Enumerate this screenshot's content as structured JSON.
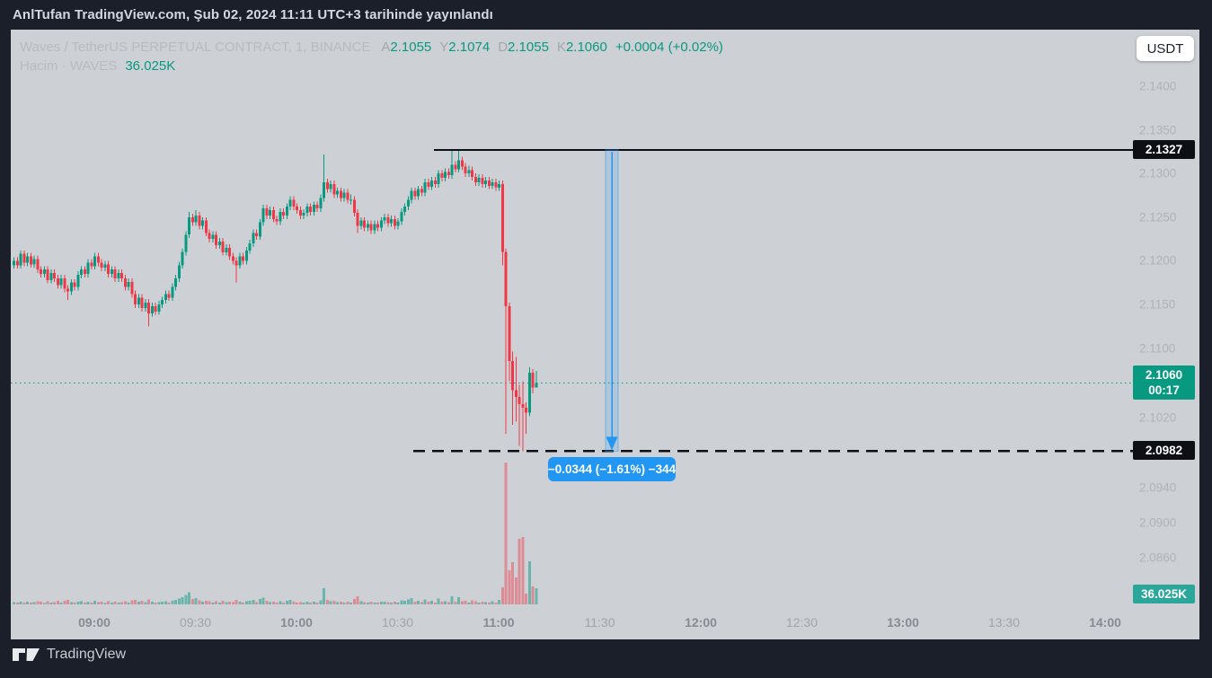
{
  "top_bar": {
    "published_text": "AnlTufan TradingView.com, Şub 02, 2024 11:11 UTC+3 tarihinde yayınlandı"
  },
  "currency_button": {
    "label": "USDT"
  },
  "watermark": {
    "brand": "TradingView"
  },
  "header": {
    "symbol_line": "Waves / TetherUS PERPETUAL CONTRACT, 1, BINANCE",
    "ohlc": [
      {
        "key": "A",
        "value": "2.1055"
      },
      {
        "key": "Y",
        "value": "2.1074"
      },
      {
        "key": "D",
        "value": "2.1055"
      },
      {
        "key": "K",
        "value": "2.1060"
      }
    ],
    "change": "+0.0004 (+0.02%)",
    "volume_label": "Hacim · WAVES",
    "volume_value": "36.025K"
  },
  "price_axis": {
    "ticks": [
      {
        "label": "2.1400",
        "price": 2.14
      },
      {
        "label": "2.1350",
        "price": 2.135
      },
      {
        "label": "2.1300",
        "price": 2.13
      },
      {
        "label": "2.1250",
        "price": 2.125
      },
      {
        "label": "2.1200",
        "price": 2.12
      },
      {
        "label": "2.1150",
        "price": 2.115
      },
      {
        "label": "2.1100",
        "price": 2.11
      },
      {
        "label": "2.1020",
        "price": 2.102
      },
      {
        "label": "2.0940",
        "price": 2.094
      },
      {
        "label": "2.0900",
        "price": 2.09
      },
      {
        "label": "2.0860",
        "price": 2.086
      }
    ],
    "badges": [
      {
        "name": "resistance-price-badge",
        "price": 2.1327,
        "lines": [
          "2.1327"
        ],
        "bg": "#0c0f14"
      },
      {
        "name": "current-price-badge",
        "price": 2.106,
        "lines": [
          "2.1060",
          "00:17"
        ],
        "bg": "#089981"
      },
      {
        "name": "support-price-badge",
        "price": 2.0982,
        "lines": [
          "2.0982"
        ],
        "bg": "#0c0f14"
      },
      {
        "name": "volume-badge",
        "anchor": "volume",
        "lines": [
          "36.025K"
        ],
        "bg": "#2aa79a"
      }
    ]
  },
  "time_axis": {
    "labels": [
      {
        "text": "09:00",
        "major": true
      },
      {
        "text": "09:30",
        "major": false
      },
      {
        "text": "10:00",
        "major": true
      },
      {
        "text": "10:30",
        "major": false
      },
      {
        "text": "11:00",
        "major": true
      },
      {
        "text": "11:30",
        "major": false
      },
      {
        "text": "12:00",
        "major": true
      },
      {
        "text": "12:30",
        "major": false
      },
      {
        "text": "13:00",
        "major": true
      },
      {
        "text": "13:30",
        "major": false
      },
      {
        "text": "14:00",
        "major": true
      }
    ]
  },
  "chart_data": {
    "type": "candlestick",
    "title": "Waves / TetherUS PERPETUAL CONTRACT, 1, BINANCE",
    "exchange": "BINANCE",
    "interval_minutes": 1,
    "first_candle_time": "08:36",
    "price_range_visible": [
      2.083,
      2.1425
    ],
    "volume_unit": "K",
    "colors": {
      "up": "#089981",
      "down": "#f23645",
      "measure": "#2196f3",
      "line": "#0c0f14"
    },
    "annotations": {
      "horizontal_line": {
        "price": 2.1327,
        "style": "solid",
        "label": "2.1327"
      },
      "horizontal_dashed_line": {
        "price": 2.0982,
        "style": "dashed",
        "label": "2.0982"
      },
      "current_price_line": {
        "price": 2.106,
        "style": "dotted",
        "label": "2.1060",
        "countdown": "00:17"
      },
      "measurement": {
        "from_price": 2.1327,
        "to_price": 2.0982,
        "label": "−0.0344 (−1.61%) −344"
      },
      "last_volume": "36.025K"
    },
    "candles": [
      [
        2.1195,
        2.1204,
        2.1191,
        2.12,
        4.8
      ],
      [
        2.12,
        2.1204,
        2.1191,
        2.1195,
        3.6
      ],
      [
        2.1195,
        2.1212,
        2.1191,
        2.1208,
        6.4
      ],
      [
        2.1208,
        2.1212,
        2.1194,
        2.1198,
        4.4
      ],
      [
        2.1198,
        2.1209,
        2.1194,
        2.1205,
        5.6
      ],
      [
        2.1205,
        2.1209,
        2.1192,
        2.1196,
        4.0
      ],
      [
        2.1196,
        2.1206,
        2.1192,
        2.1202,
        5.2
      ],
      [
        2.1202,
        2.1206,
        2.1186,
        2.119,
        7.2
      ],
      [
        2.119,
        2.1194,
        2.1181,
        2.1185,
        6.0
      ],
      [
        2.1185,
        2.1194,
        2.1181,
        2.119,
        3.2
      ],
      [
        2.119,
        2.1194,
        2.1174,
        2.1178,
        6.8
      ],
      [
        2.1178,
        2.119,
        2.1174,
        2.1186,
        4.0
      ],
      [
        2.1186,
        2.119,
        2.1176,
        2.118,
        4.8
      ],
      [
        2.118,
        2.1184,
        2.1168,
        2.1172,
        7.6
      ],
      [
        2.1172,
        2.1184,
        2.1168,
        2.118,
        4.4
      ],
      [
        2.118,
        2.1184,
        2.1164,
        2.1168,
        8.4
      ],
      [
        2.1168,
        2.1172,
        2.1155,
        2.1165,
        9.6
      ],
      [
        2.1165,
        2.1179,
        2.1161,
        2.1175,
        5.2
      ],
      [
        2.1175,
        2.1179,
        2.1166,
        2.117,
        3.6
      ],
      [
        2.117,
        2.1188,
        2.1166,
        2.1184,
        6.4
      ],
      [
        2.1184,
        2.1194,
        2.118,
        2.119,
        7.2
      ],
      [
        2.119,
        2.1194,
        2.1181,
        2.1185,
        4.0
      ],
      [
        2.1185,
        2.1202,
        2.1181,
        2.1198,
        6.0
      ],
      [
        2.1198,
        2.1202,
        2.119,
        2.1194,
        3.6
      ],
      [
        2.1194,
        2.1209,
        2.119,
        2.1205,
        8.0
      ],
      [
        2.1205,
        2.1209,
        2.1194,
        2.1198,
        4.8
      ],
      [
        2.1198,
        2.1202,
        2.1188,
        2.1192,
        5.6
      ],
      [
        2.1192,
        2.12,
        2.1188,
        2.1196,
        3.2
      ],
      [
        2.1196,
        2.12,
        2.1181,
        2.1185,
        6.8
      ],
      [
        2.1185,
        2.1194,
        2.1181,
        2.119,
        4.0
      ],
      [
        2.119,
        2.1194,
        2.1176,
        2.118,
        6.4
      ],
      [
        2.118,
        2.119,
        2.1176,
        2.1186,
        3.6
      ],
      [
        2.1186,
        2.119,
        2.1176,
        2.118,
        5.2
      ],
      [
        2.118,
        2.1184,
        2.1166,
        2.117,
        7.2
      ],
      [
        2.117,
        2.118,
        2.1166,
        2.1176,
        4.4
      ],
      [
        2.1176,
        2.118,
        2.1158,
        2.1162,
        8.8
      ],
      [
        2.1162,
        2.1166,
        2.1146,
        2.115,
        10.4
      ],
      [
        2.115,
        2.1162,
        2.1146,
        2.1158,
        5.6
      ],
      [
        2.1158,
        2.1162,
        2.1142,
        2.1146,
        7.6
      ],
      [
        2.1146,
        2.1156,
        2.1142,
        2.1152,
        4.8
      ],
      [
        2.1152,
        2.1156,
        2.1125,
        2.114,
        11.2
      ],
      [
        2.114,
        2.1152,
        2.1136,
        2.1148,
        6.0
      ],
      [
        2.1148,
        2.1152,
        2.1138,
        2.1142,
        4.0
      ],
      [
        2.1142,
        2.1154,
        2.1138,
        2.115,
        5.2
      ],
      [
        2.115,
        2.1159,
        2.1146,
        2.1155,
        6.4
      ],
      [
        2.1155,
        2.1166,
        2.1151,
        2.1162,
        7.2
      ],
      [
        2.1162,
        2.1166,
        2.1154,
        2.1158,
        4.0
      ],
      [
        2.1158,
        2.1174,
        2.1154,
        2.117,
        8.4
      ],
      [
        2.117,
        2.1184,
        2.1166,
        2.118,
        9.6
      ],
      [
        2.118,
        2.1199,
        2.1176,
        2.1195,
        12.8
      ],
      [
        2.1195,
        2.1214,
        2.1191,
        2.121,
        16.4
      ],
      [
        2.121,
        2.1234,
        2.1206,
        2.123,
        21.2
      ],
      [
        2.123,
        2.1256,
        2.1226,
        2.125,
        27.2
      ],
      [
        2.125,
        2.1254,
        2.124,
        2.1244,
        11.6
      ],
      [
        2.1244,
        2.1258,
        2.124,
        2.1252,
        13.6
      ],
      [
        2.1252,
        2.1256,
        2.1236,
        2.124,
        8.8
      ],
      [
        2.124,
        2.125,
        2.1236,
        2.1246,
        6.0
      ],
      [
        2.1246,
        2.125,
        2.1228,
        2.1232,
        8.0
      ],
      [
        2.1232,
        2.1236,
        2.1221,
        2.1225,
        6.8
      ],
      [
        2.1225,
        2.1234,
        2.1221,
        2.123,
        4.4
      ],
      [
        2.123,
        2.1234,
        2.1214,
        2.1218,
        7.2
      ],
      [
        2.1218,
        2.1226,
        2.1214,
        2.1222,
        4.0
      ],
      [
        2.1222,
        2.1226,
        2.1206,
        2.121,
        7.6
      ],
      [
        2.121,
        2.1219,
        2.1206,
        2.1215,
        4.8
      ],
      [
        2.1215,
        2.1219,
        2.1201,
        2.1205,
        6.4
      ],
      [
        2.1205,
        2.1209,
        2.1196,
        2.12,
        5.2
      ],
      [
        2.12,
        2.1204,
        2.1175,
        2.1195,
        10.0
      ],
      [
        2.1195,
        2.1209,
        2.1191,
        2.1205,
        5.6
      ],
      [
        2.1205,
        2.1209,
        2.1196,
        2.12,
        4.0
      ],
      [
        2.12,
        2.1216,
        2.1196,
        2.1212,
        6.8
      ],
      [
        2.1212,
        2.1224,
        2.1208,
        2.122,
        8.0
      ],
      [
        2.122,
        2.1236,
        2.1216,
        2.1232,
        10.4
      ],
      [
        2.1232,
        2.1236,
        2.1224,
        2.1228,
        5.2
      ],
      [
        2.1228,
        2.1248,
        2.1224,
        2.1244,
        11.6
      ],
      [
        2.1244,
        2.1264,
        2.124,
        2.126,
        15.2
      ],
      [
        2.126,
        2.1264,
        2.1248,
        2.1252,
        7.6
      ],
      [
        2.1252,
        2.1262,
        2.1248,
        2.1258,
        4.8
      ],
      [
        2.1258,
        2.1262,
        2.1244,
        2.1248,
        6.4
      ],
      [
        2.1248,
        2.1252,
        2.1241,
        2.1245,
        4.0
      ],
      [
        2.1245,
        2.126,
        2.1241,
        2.1256,
        7.2
      ],
      [
        2.1256,
        2.126,
        2.1248,
        2.1252,
        4.4
      ],
      [
        2.1252,
        2.1266,
        2.1248,
        2.1262,
        7.6
      ],
      [
        2.1262,
        2.1274,
        2.1258,
        2.127,
        9.6
      ],
      [
        2.127,
        2.1274,
        2.1258,
        2.1262,
        5.6
      ],
      [
        2.1262,
        2.1266,
        2.1254,
        2.1258,
        4.0
      ],
      [
        2.1258,
        2.1262,
        2.1248,
        2.1252,
        5.2
      ],
      [
        2.1252,
        2.1259,
        2.1248,
        2.1255,
        3.6
      ],
      [
        2.1255,
        2.1266,
        2.1251,
        2.1262,
        6.0
      ],
      [
        2.1262,
        2.1266,
        2.1252,
        2.1256,
        4.0
      ],
      [
        2.1256,
        2.1268,
        2.1252,
        2.1264,
        6.4
      ],
      [
        2.1264,
        2.1268,
        2.1256,
        2.126,
        4.4
      ],
      [
        2.126,
        2.1276,
        2.1256,
        2.1272,
        8.8
      ],
      [
        2.1272,
        2.1322,
        2.1268,
        2.129,
        35.6
      ],
      [
        2.129,
        2.1294,
        2.1278,
        2.1282,
        10.4
      ],
      [
        2.1282,
        2.1292,
        2.1278,
        2.1288,
        6.8
      ],
      [
        2.1288,
        2.1292,
        2.1272,
        2.1276,
        8.4
      ],
      [
        2.1276,
        2.1284,
        2.1272,
        2.128,
        4.8
      ],
      [
        2.128,
        2.1284,
        2.1268,
        2.1272,
        6.0
      ],
      [
        2.1272,
        2.1282,
        2.1268,
        2.1278,
        4.0
      ],
      [
        2.1278,
        2.1282,
        2.1266,
        2.127,
        5.6
      ],
      [
        2.127,
        2.1276,
        2.1264,
        2.127,
        3.6
      ],
      [
        2.127,
        2.1274,
        2.1251,
        2.1255,
        12.4
      ],
      [
        2.1255,
        2.1259,
        2.1232,
        2.124,
        18.4
      ],
      [
        2.124,
        2.125,
        2.1236,
        2.1246,
        7.2
      ],
      [
        2.1246,
        2.125,
        2.1234,
        2.1238,
        5.2
      ],
      [
        2.1238,
        2.1246,
        2.1234,
        2.1242,
        4.0
      ],
      [
        2.1242,
        2.1246,
        2.1231,
        2.1235,
        6.0
      ],
      [
        2.1235,
        2.1246,
        2.1231,
        2.1242,
        4.4
      ],
      [
        2.1242,
        2.1246,
        2.1234,
        2.1238,
        3.6
      ],
      [
        2.1238,
        2.125,
        2.1234,
        2.1246,
        5.6
      ],
      [
        2.1246,
        2.1254,
        2.1242,
        2.125,
        6.4
      ],
      [
        2.125,
        2.1254,
        2.1239,
        2.1243,
        4.8
      ],
      [
        2.1243,
        2.1252,
        2.1239,
        2.1248,
        4.0
      ],
      [
        2.1248,
        2.1252,
        2.1236,
        2.124,
        6.0
      ],
      [
        2.124,
        2.1249,
        2.1236,
        2.1245,
        4.4
      ],
      [
        2.1245,
        2.126,
        2.1241,
        2.1256,
        9.2
      ],
      [
        2.1256,
        2.1266,
        2.1252,
        2.1262,
        8.0
      ],
      [
        2.1262,
        2.1274,
        2.1258,
        2.127,
        10.8
      ],
      [
        2.127,
        2.1284,
        2.1266,
        2.128,
        13.6
      ],
      [
        2.128,
        2.1284,
        2.127,
        2.1274,
        6.4
      ],
      [
        2.1274,
        2.1286,
        2.127,
        2.1282,
        7.6
      ],
      [
        2.1282,
        2.1286,
        2.1274,
        2.1278,
        4.8
      ],
      [
        2.1278,
        2.1294,
        2.1274,
        2.129,
        11.2
      ],
      [
        2.129,
        2.1294,
        2.1281,
        2.1285,
        5.6
      ],
      [
        2.1285,
        2.1296,
        2.1281,
        2.1292,
        7.6
      ],
      [
        2.1292,
        2.1296,
        2.1284,
        2.1288,
        4.4
      ],
      [
        2.1288,
        2.1304,
        2.1284,
        2.13,
        12.8
      ],
      [
        2.13,
        2.1304,
        2.1291,
        2.1295,
        6.0
      ],
      [
        2.1295,
        2.1306,
        2.1291,
        2.1302,
        7.2
      ],
      [
        2.1302,
        2.1306,
        2.1294,
        2.1298,
        4.8
      ],
      [
        2.1298,
        2.1327,
        2.1294,
        2.131,
        17.6
      ],
      [
        2.131,
        2.1314,
        2.1301,
        2.1305,
        6.4
      ],
      [
        2.1305,
        2.1327,
        2.1301,
        2.1315,
        15.6
      ],
      [
        2.1315,
        2.1319,
        2.1304,
        2.1308,
        6.8
      ],
      [
        2.1308,
        2.1312,
        2.1296,
        2.13,
        8.0
      ],
      [
        2.13,
        2.1309,
        2.1296,
        2.1304,
        4.4
      ],
      [
        2.1304,
        2.1308,
        2.1292,
        2.1296,
        8.8
      ],
      [
        2.1296,
        2.13,
        2.1286,
        2.129,
        7.2
      ],
      [
        2.129,
        2.1299,
        2.1286,
        2.1295,
        4.0
      ],
      [
        2.1295,
        2.1299,
        2.1284,
        2.1288,
        6.4
      ],
      [
        2.1288,
        2.1296,
        2.1284,
        2.1292,
        5.2
      ],
      [
        2.1292,
        2.1296,
        2.1282,
        2.1286,
        3.6
      ],
      [
        2.1286,
        2.1294,
        2.1282,
        2.129,
        6.8
      ],
      [
        2.129,
        2.1294,
        2.128,
        2.1284,
        4.0
      ],
      [
        2.1284,
        2.1292,
        2.128,
        2.1288,
        10.0
      ],
      [
        2.1288,
        2.1292,
        2.1195,
        2.121,
        38.0
      ],
      [
        2.121,
        2.1214,
        2.1002,
        2.1148,
        316.0
      ],
      [
        2.1148,
        2.1152,
        2.1062,
        2.1085,
        76.0
      ],
      [
        2.1085,
        2.1096,
        2.1012,
        2.1052,
        94.0
      ],
      [
        2.1052,
        2.109,
        2.1016,
        2.1044,
        60.0
      ],
      [
        2.1044,
        2.1058,
        2.0988,
        2.1036,
        146.0
      ],
      [
        2.1036,
        2.1062,
        2.0982,
        2.1032,
        150.0
      ],
      [
        2.1032,
        2.1038,
        2.1002,
        2.1026,
        24.0
      ],
      [
        2.1026,
        2.1078,
        2.1022,
        2.1072,
        96.0
      ],
      [
        2.1072,
        2.1076,
        2.1048,
        2.1055,
        40.0
      ],
      [
        2.1055,
        2.1074,
        2.1055,
        2.106,
        36.025
      ]
    ]
  }
}
